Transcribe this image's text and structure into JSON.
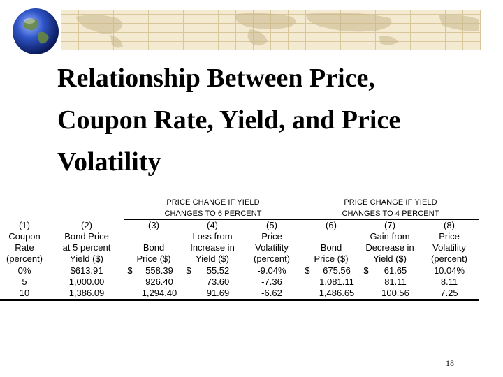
{
  "slide": {
    "title_lines": [
      "Relationship Between Price,",
      "Coupon Rate, Yield, and Price",
      "Volatility"
    ],
    "page_number": "18"
  },
  "table": {
    "group_6pct": [
      "PRICE CHANGE IF YIELD",
      "CHANGES TO 6 PERCENT"
    ],
    "group_4pct": [
      "PRICE CHANGE IF YIELD",
      "CHANGES TO 4 PERCENT"
    ],
    "col_numbers": [
      "(1)",
      "(2)",
      "(3)",
      "(4)",
      "(5)",
      "(6)",
      "(7)",
      "(8)"
    ],
    "col_headers": [
      [
        "Coupon",
        "Rate",
        "(percent)"
      ],
      [
        "Bond Price",
        "at 5 percent",
        "Yield ($)"
      ],
      [
        "",
        "Bond",
        "Price ($)"
      ],
      [
        "Loss from",
        "Increase in",
        "Yield ($)"
      ],
      [
        "Price",
        "Volatility",
        "(percent)"
      ],
      [
        "",
        "Bond",
        "Price ($)"
      ],
      [
        "Gain from",
        "Decrease in",
        "Yield ($)"
      ],
      [
        "Price",
        "Volatility",
        "(percent)"
      ]
    ],
    "rows": [
      [
        "0%",
        "$613.91",
        "$",
        "558.39",
        "$",
        "55.52",
        "-9.04%",
        "$",
        "675.56",
        "$",
        "61.65",
        "10.04%"
      ],
      [
        "5",
        "1,000.00",
        "",
        "926.40",
        "",
        "73.60",
        "-7.36",
        "",
        "1,081.11",
        "",
        "81.11",
        "8.11"
      ],
      [
        "10",
        "1,386.09",
        "",
        "1,294.40",
        "",
        "91.69",
        "-6.62",
        "",
        "1,486.65",
        "",
        "100.56",
        "7.25"
      ]
    ]
  },
  "colors": {
    "map_bg": "#f4ead2",
    "map_grid": "#d9c79c",
    "globe_blue": "#1e3fa8"
  },
  "icons": {
    "globe": "globe-icon",
    "map": "world-map-banner"
  }
}
